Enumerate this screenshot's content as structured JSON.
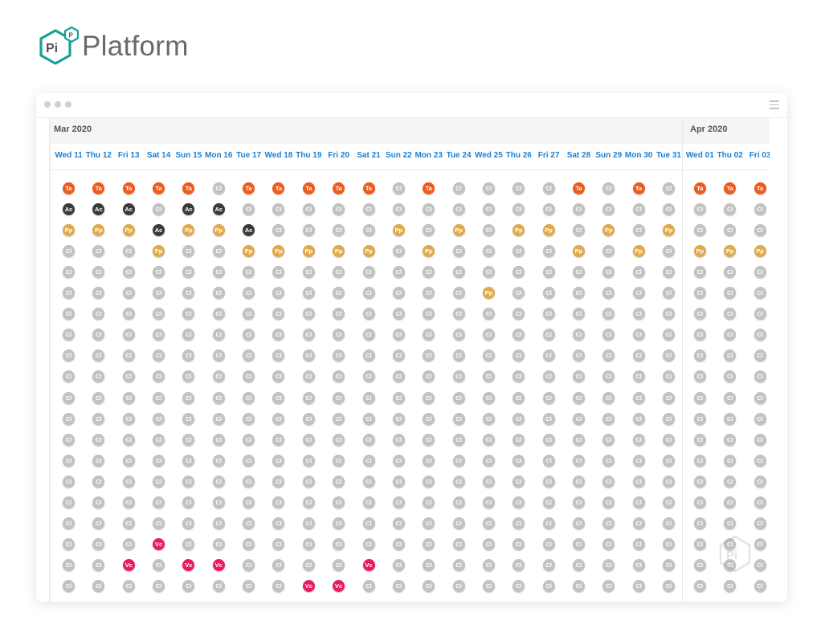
{
  "brand": {
    "logo_mark": "Pi",
    "logo_sup": "P",
    "name": "Platform"
  },
  "window": {
    "controls": [
      "dot",
      "dot",
      "dot"
    ],
    "menu_icon": "hamburger-icon"
  },
  "months": [
    {
      "label": "Mar 2020"
    },
    {
      "label": "Apr 2020"
    }
  ],
  "days": [
    "Wed 11",
    "Thu 12",
    "Fri 13",
    "Sat 14",
    "Sun 15",
    "Mon 16",
    "Tue 17",
    "Wed 18",
    "Thu 19",
    "Fri 20",
    "Sat 21",
    "Sun 22",
    "Mon 23",
    "Tue 24",
    "Wed 25",
    "Thu 26",
    "Fri 27",
    "Sat 28",
    "Sun 29",
    "Mon 30",
    "Tue 31",
    "Wed 01",
    "Thu 02",
    "Fri 03"
  ],
  "legend": {
    "Ta": {
      "color": "#f05a1a"
    },
    "Ac": {
      "color": "#3a3a3a"
    },
    "Pp": {
      "color": "#e0a94a"
    },
    "Cl": {
      "color": "#c2c2c2"
    },
    "Vc": {
      "color": "#ea1a63"
    }
  },
  "rows": [
    [
      "Ta",
      "Ta",
      "Ta",
      "Ta",
      "Ta",
      "Cl",
      "Ta",
      "Ta",
      "Ta",
      "Ta",
      "Ta",
      "Cl",
      "Ta",
      "Cl",
      "Cl",
      "Cl",
      "Cl",
      "Ta",
      "Cl",
      "Ta",
      "Cl",
      "Ta",
      "Ta",
      "Ta"
    ],
    [
      "Ac",
      "Ac",
      "Ac",
      "Cl",
      "Ac",
      "Ac",
      "Cl",
      "Cl",
      "Cl",
      "Cl",
      "Cl",
      "Cl",
      "Cl",
      "Cl",
      "Cl",
      "Cl",
      "Cl",
      "Cl",
      "Cl",
      "Cl",
      "Cl",
      "Cl",
      "Cl",
      "Cl"
    ],
    [
      "Pp",
      "Pp",
      "Pp",
      "Ac",
      "Pp",
      "Pp",
      "Ac",
      "Cl",
      "Cl",
      "Cl",
      "Cl",
      "Pp",
      "Cl",
      "Pp",
      "Cl",
      "Pp",
      "Pp",
      "Cl",
      "Pp",
      "Cl",
      "Pp",
      "Cl",
      "Cl",
      "Cl"
    ],
    [
      "Cl",
      "Cl",
      "Cl",
      "Pp",
      "Cl",
      "Cl",
      "Pp",
      "Pp",
      "Pp",
      "Pp",
      "Pp",
      "Cl",
      "Pp",
      "Cl",
      "Cl",
      "Cl",
      "Cl",
      "Pp",
      "Cl",
      "Pp",
      "Cl",
      "Pp",
      "Pp",
      "Pp"
    ],
    [
      "Cl",
      "Cl",
      "Cl",
      "Cl",
      "Cl",
      "Cl",
      "Cl",
      "Cl",
      "Cl",
      "Cl",
      "Cl",
      "Cl",
      "Cl",
      "Cl",
      "Cl",
      "Cl",
      "Cl",
      "Cl",
      "Cl",
      "Cl",
      "Cl",
      "Cl",
      "Cl",
      "Cl"
    ],
    [
      "Cl",
      "Cl",
      "Cl",
      "Cl",
      "Cl",
      "Cl",
      "Cl",
      "Cl",
      "Cl",
      "Cl",
      "Cl",
      "Cl",
      "Cl",
      "Cl",
      "Pp",
      "Cl",
      "Cl",
      "Cl",
      "Cl",
      "Cl",
      "Cl",
      "Cl",
      "Cl",
      "Cl"
    ],
    [
      "Cl",
      "Cl",
      "Cl",
      "Cl",
      "Cl",
      "Cl",
      "Cl",
      "Cl",
      "Cl",
      "Cl",
      "Cl",
      "Cl",
      "Cl",
      "Cl",
      "Cl",
      "Cl",
      "Cl",
      "Cl",
      "Cl",
      "Cl",
      "Cl",
      "Cl",
      "Cl",
      "Cl"
    ],
    [
      "Cl",
      "Cl",
      "Cl",
      "Cl",
      "Cl",
      "Cl",
      "Cl",
      "Cl",
      "Cl",
      "Cl",
      "Cl",
      "Cl",
      "Cl",
      "Cl",
      "Cl",
      "Cl",
      "Cl",
      "Cl",
      "Cl",
      "Cl",
      "Cl",
      "Cl",
      "Cl",
      "Cl"
    ],
    [
      "Cl",
      "Cl",
      "Cl",
      "Cl",
      "Cl",
      "Cl",
      "Cl",
      "Cl",
      "Cl",
      "Cl",
      "Cl",
      "Cl",
      "Cl",
      "Cl",
      "Cl",
      "Cl",
      "Cl",
      "Cl",
      "Cl",
      "Cl",
      "Cl",
      "Cl",
      "Cl",
      "Cl"
    ],
    [
      "Cl",
      "Cl",
      "Cl",
      "Cl",
      "Cl",
      "Cl",
      "Cl",
      "Cl",
      "Cl",
      "Cl",
      "Cl",
      "Cl",
      "Cl",
      "Cl",
      "Cl",
      "Cl",
      "Cl",
      "Cl",
      "Cl",
      "Cl",
      "Cl",
      "Cl",
      "Cl",
      "Cl"
    ],
    [
      "Cl",
      "Cl",
      "Cl",
      "Cl",
      "Cl",
      "Cl",
      "Cl",
      "Cl",
      "Cl",
      "Cl",
      "Cl",
      "Cl",
      "Cl",
      "Cl",
      "Cl",
      "Cl",
      "Cl",
      "Cl",
      "Cl",
      "Cl",
      "Cl",
      "Cl",
      "Cl",
      "Cl"
    ],
    [
      "Cl",
      "Cl",
      "Cl",
      "Cl",
      "Cl",
      "Cl",
      "Cl",
      "Cl",
      "Cl",
      "Cl",
      "Cl",
      "Cl",
      "Cl",
      "Cl",
      "Cl",
      "Cl",
      "Cl",
      "Cl",
      "Cl",
      "Cl",
      "Cl",
      "Cl",
      "Cl",
      "Cl"
    ],
    [
      "Cl",
      "Cl",
      "Cl",
      "Cl",
      "Cl",
      "Cl",
      "Cl",
      "Cl",
      "Cl",
      "Cl",
      "Cl",
      "Cl",
      "Cl",
      "Cl",
      "Cl",
      "Cl",
      "Cl",
      "Cl",
      "Cl",
      "Cl",
      "Cl",
      "Cl",
      "Cl",
      "Cl"
    ],
    [
      "Cl",
      "Cl",
      "Cl",
      "Cl",
      "Cl",
      "Cl",
      "Cl",
      "Cl",
      "Cl",
      "Cl",
      "Cl",
      "Cl",
      "Cl",
      "Cl",
      "Cl",
      "Cl",
      "Cl",
      "Cl",
      "Cl",
      "Cl",
      "Cl",
      "Cl",
      "Cl",
      "Cl"
    ],
    [
      "Cl",
      "Cl",
      "Cl",
      "Cl",
      "Cl",
      "Cl",
      "Cl",
      "Cl",
      "Cl",
      "Cl",
      "Cl",
      "Cl",
      "Cl",
      "Cl",
      "Cl",
      "Cl",
      "Cl",
      "Cl",
      "Cl",
      "Cl",
      "Cl",
      "Cl",
      "Cl",
      "Cl"
    ],
    [
      "Cl",
      "Cl",
      "Cl",
      "Cl",
      "Cl",
      "Cl",
      "Cl",
      "Cl",
      "Cl",
      "Cl",
      "Cl",
      "Cl",
      "Cl",
      "Cl",
      "Cl",
      "Cl",
      "Cl",
      "Cl",
      "Cl",
      "Cl",
      "Cl",
      "Cl",
      "Cl",
      "Cl"
    ],
    [
      "Cl",
      "Cl",
      "Cl",
      "Cl",
      "Cl",
      "Cl",
      "Cl",
      "Cl",
      "Cl",
      "Cl",
      "Cl",
      "Cl",
      "Cl",
      "Cl",
      "Cl",
      "Cl",
      "Cl",
      "Cl",
      "Cl",
      "Cl",
      "Cl",
      "Cl",
      "Cl",
      "Cl"
    ],
    [
      "Cl",
      "Cl",
      "Cl",
      "Vc",
      "Cl",
      "Cl",
      "Cl",
      "Cl",
      "Cl",
      "Cl",
      "Cl",
      "Cl",
      "Cl",
      "Cl",
      "Cl",
      "Cl",
      "Cl",
      "Cl",
      "Cl",
      "Cl",
      "Cl",
      "Cl",
      "Cl",
      "Cl"
    ],
    [
      "Cl",
      "Cl",
      "Vc",
      "Cl",
      "Vc",
      "Vc",
      "Cl",
      "Cl",
      "Cl",
      "Cl",
      "Vc",
      "Cl",
      "Cl",
      "Cl",
      "Cl",
      "Cl",
      "Cl",
      "Cl",
      "Cl",
      "Cl",
      "Cl",
      "Cl",
      "Cl",
      "Cl"
    ],
    [
      "Cl",
      "Cl",
      "Cl",
      "Cl",
      "Cl",
      "Cl",
      "Cl",
      "Cl",
      "Vc",
      "Vc",
      "Cl",
      "Cl",
      "Cl",
      "Cl",
      "Cl",
      "Cl",
      "Cl",
      "Cl",
      "Cl",
      "Cl",
      "Cl",
      "Cl",
      "Cl",
      "Cl"
    ]
  ]
}
